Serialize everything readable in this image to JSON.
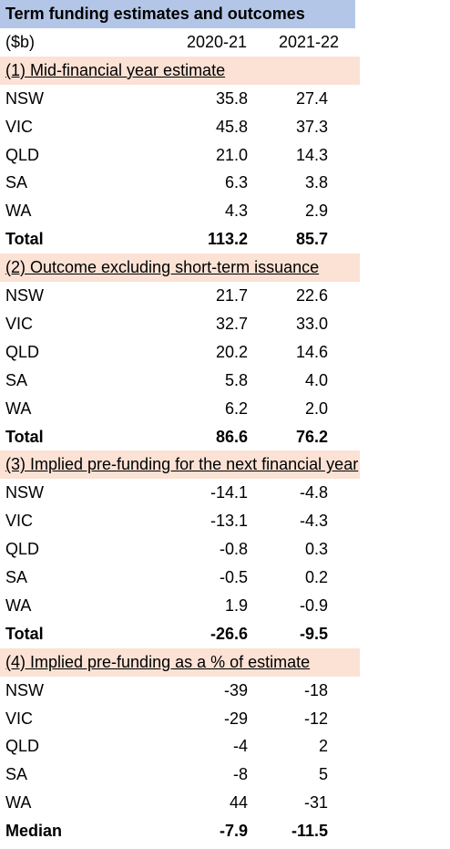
{
  "title": "Term funding estimates and outcomes",
  "header": [
    "($b)",
    "2020-21",
    "2021-22"
  ],
  "sections": [
    {
      "heading": "(1) Mid-financial year estimate",
      "rows": [
        [
          "NSW",
          "35.8",
          "27.4"
        ],
        [
          "VIC",
          "45.8",
          "37.3"
        ],
        [
          "QLD",
          "21.0",
          "14.3"
        ],
        [
          "SA",
          "6.3",
          "3.8"
        ],
        [
          "WA",
          "4.3",
          "2.9"
        ]
      ],
      "total": [
        "Total",
        "113.2",
        "85.7"
      ]
    },
    {
      "heading": "(2) Outcome excluding short-term issuance",
      "rows": [
        [
          "NSW",
          "21.7",
          "22.6"
        ],
        [
          "VIC",
          "32.7",
          "33.0"
        ],
        [
          "QLD",
          "20.2",
          "14.6"
        ],
        [
          "SA",
          "5.8",
          "4.0"
        ],
        [
          "WA",
          "6.2",
          "2.0"
        ]
      ],
      "total": [
        "Total",
        "86.6",
        "76.2"
      ]
    },
    {
      "heading": "(3) Implied pre-funding for the next financial year",
      "rows": [
        [
          "NSW",
          "-14.1",
          "-4.8"
        ],
        [
          "VIC",
          "-13.1",
          "-4.3"
        ],
        [
          "QLD",
          "-0.8",
          "0.3"
        ],
        [
          "SA",
          "-0.5",
          "0.2"
        ],
        [
          "WA",
          "1.9",
          "-0.9"
        ]
      ],
      "total": [
        "Total",
        "-26.6",
        "-9.5"
      ]
    },
    {
      "heading": "(4) Implied pre-funding as a % of estimate",
      "rows": [
        [
          "NSW",
          "-39",
          "-18"
        ],
        [
          "VIC",
          "-29",
          "-12"
        ],
        [
          "QLD",
          "-4",
          "2"
        ],
        [
          "SA",
          "-8",
          "5"
        ],
        [
          "WA",
          "44",
          "-31"
        ]
      ],
      "total": [
        "Median",
        "-7.9",
        "-11.5"
      ]
    }
  ]
}
